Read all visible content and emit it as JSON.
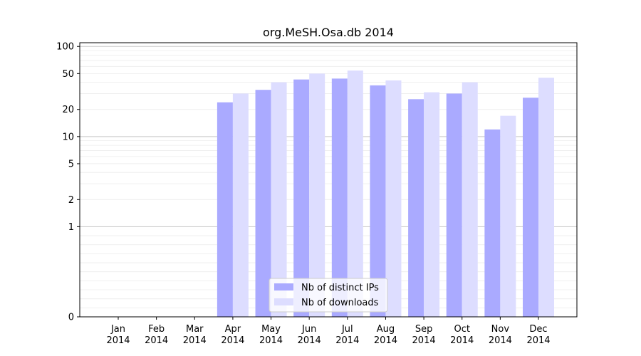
{
  "chart_data": {
    "type": "bar",
    "title": "org.MeSH.Osa.db 2014",
    "xlabel": "",
    "ylabel": "",
    "y_scale": "symlog",
    "ylim": [
      0,
      110
    ],
    "y_ticks": [
      0,
      1,
      2,
      5,
      10,
      20,
      50,
      100
    ],
    "grid": true,
    "legend_position": "lower center",
    "categories": [
      [
        "Jan",
        "2014"
      ],
      [
        "Feb",
        "2014"
      ],
      [
        "Mar",
        "2014"
      ],
      [
        "Apr",
        "2014"
      ],
      [
        "May",
        "2014"
      ],
      [
        "Jun",
        "2014"
      ],
      [
        "Jul",
        "2014"
      ],
      [
        "Aug",
        "2014"
      ],
      [
        "Sep",
        "2014"
      ],
      [
        "Oct",
        "2014"
      ],
      [
        "Nov",
        "2014"
      ],
      [
        "Dec",
        "2014"
      ]
    ],
    "series": [
      {
        "name": "Nb of distinct IPs",
        "color": "#aaaaff",
        "values": [
          0,
          0,
          0,
          24,
          33,
          43,
          44,
          37,
          26,
          30,
          12,
          27
        ]
      },
      {
        "name": "Nb of downloads",
        "color": "#ddddff",
        "values": [
          0,
          0,
          0,
          30,
          40,
          50,
          54,
          42,
          31,
          40,
          17,
          45
        ]
      }
    ]
  }
}
